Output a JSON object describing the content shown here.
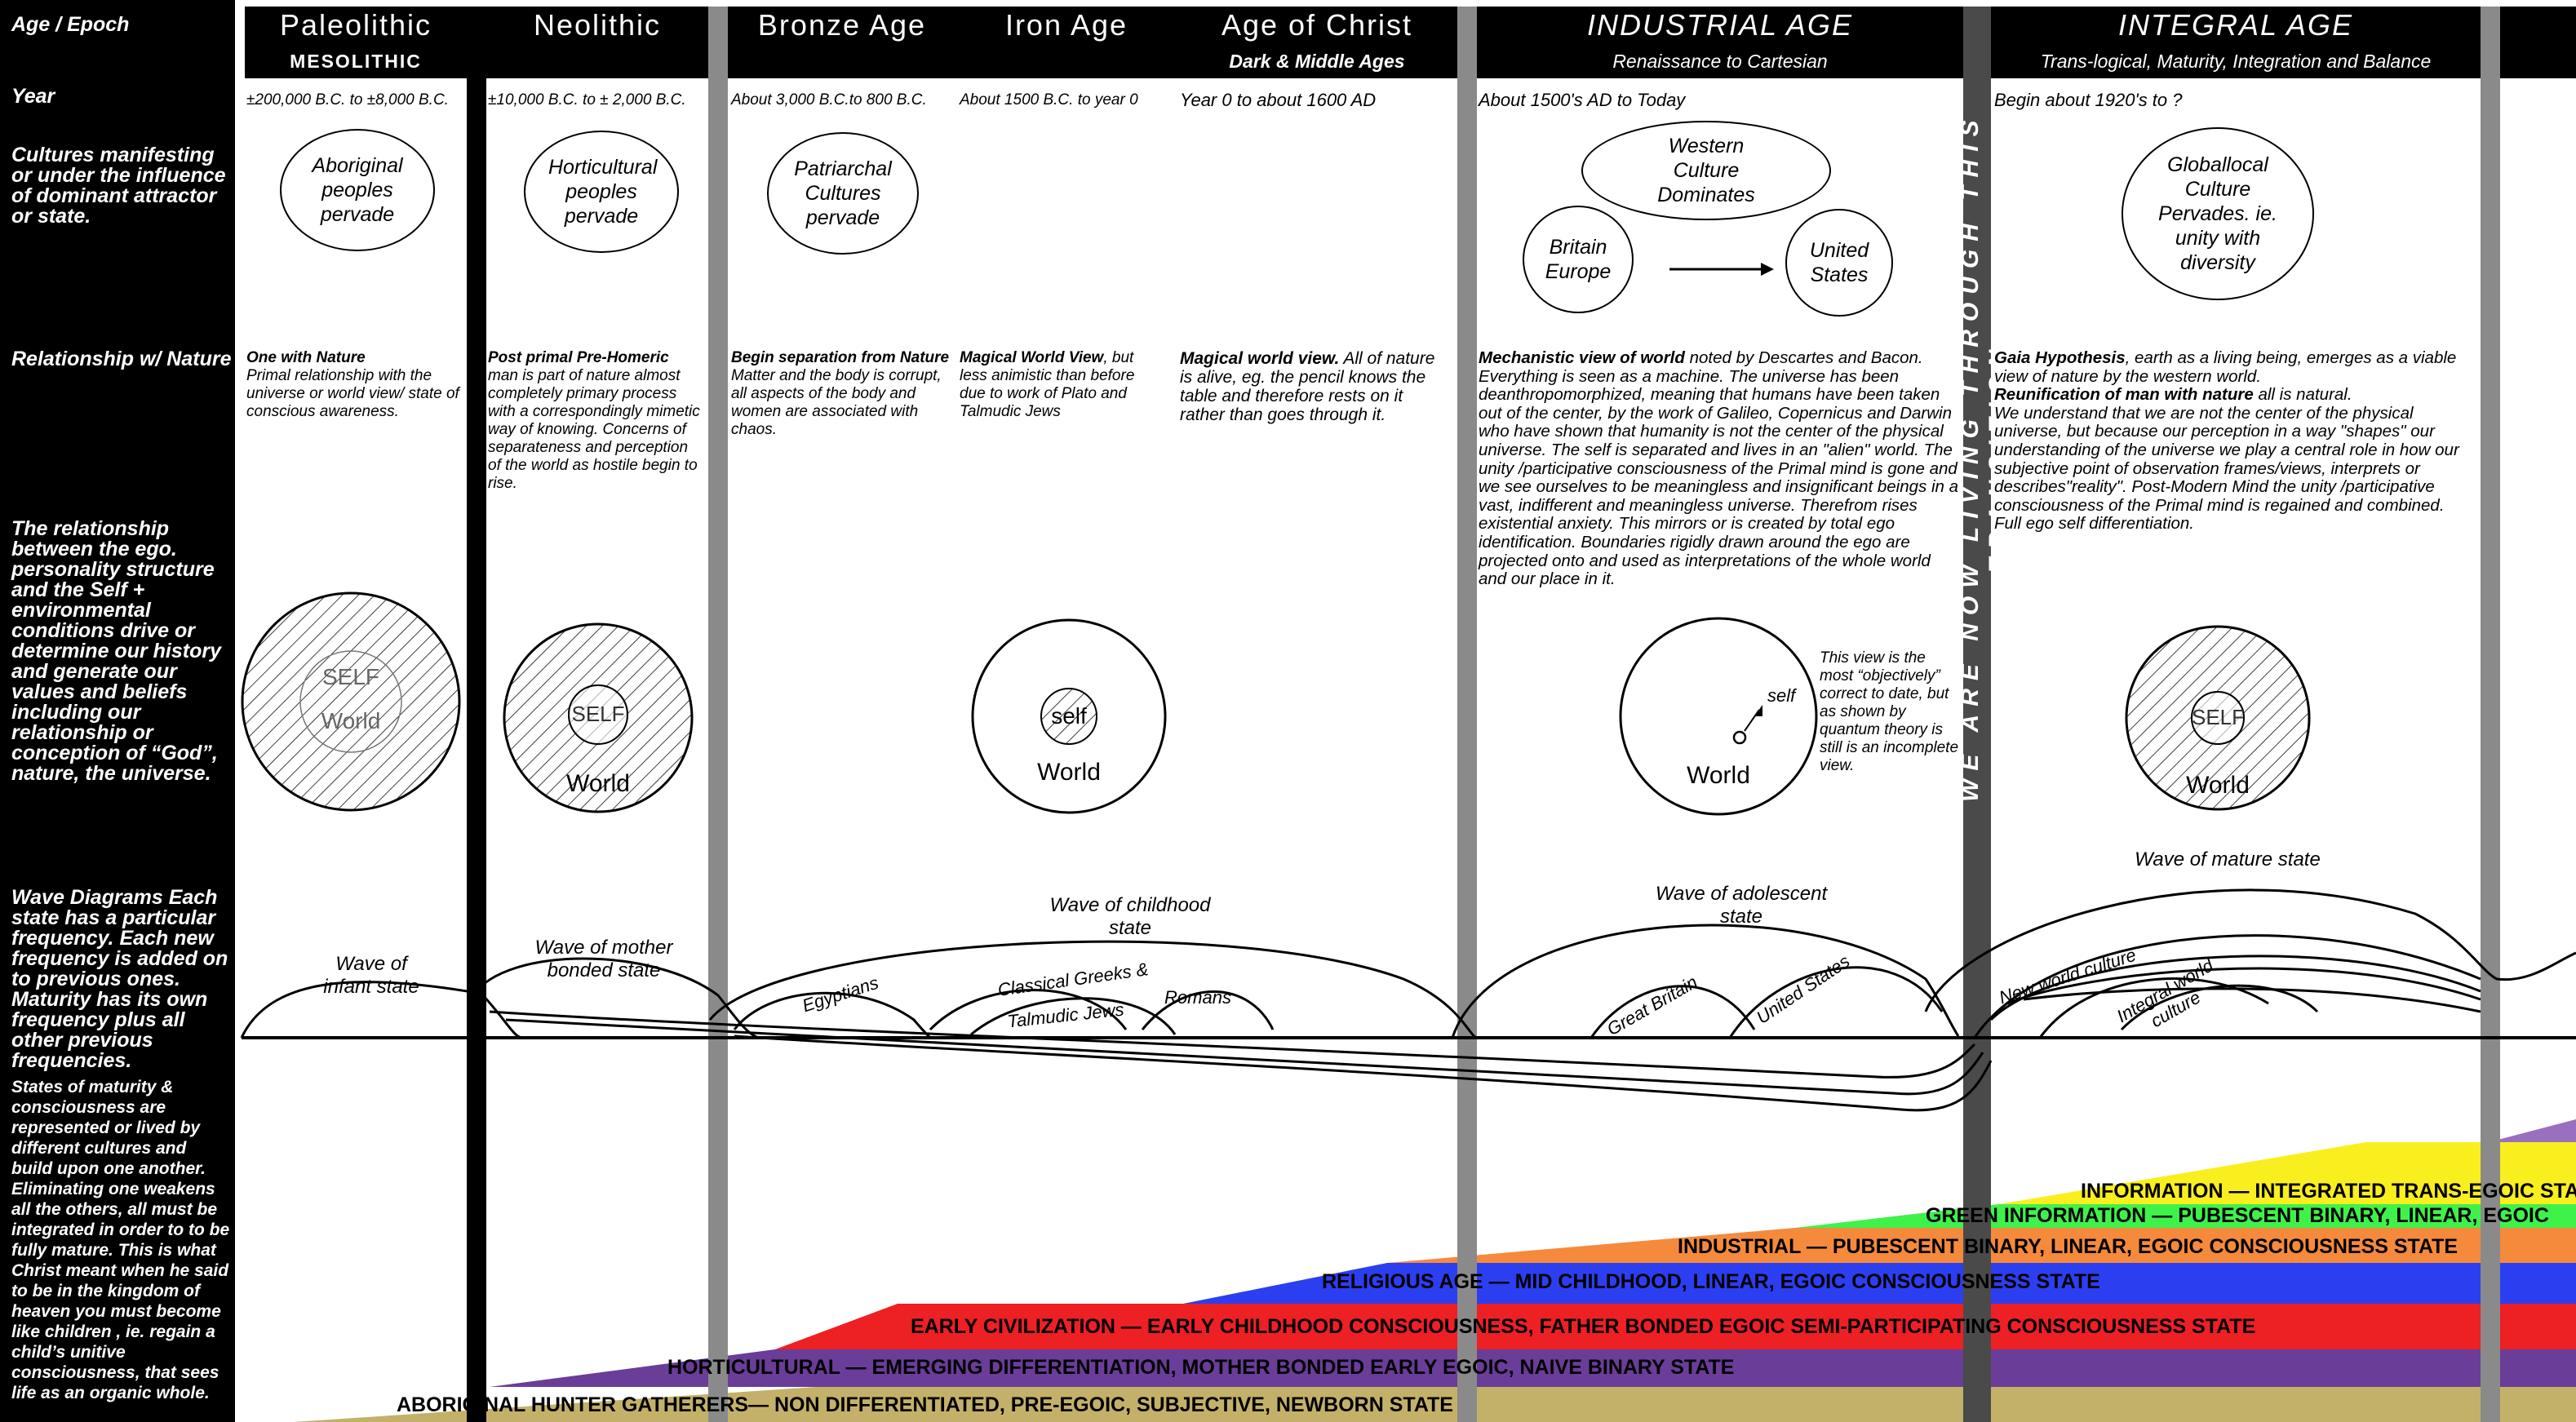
{
  "sidebar": {
    "age_epoch": "Age / Epoch",
    "year": "Year",
    "cultures": "Cultures manifesting or under the influence of dominant attractor or state.",
    "relationship": "Relationship w/ Nature",
    "ego_structure": "The relationship between the ego. personality structure and the Self + environmental conditions drive or determine our history and generate our values and beliefs including our relationship or conception of “God”, nature, the universe.",
    "wave_diagrams": "Wave Diagrams Each state has a particular frequency. Each new frequency is added on to previous ones. Maturity has its own frequency plus all other previous frequencies.",
    "states": "States of maturity & consciousness are represented or lived by different cultures and build upon one another. Eliminating one weakens all the others, all must be integrated in order to to be fully mature. This is what Christ meant when he said to be in the kingdom of heaven you must become like children , ie. regain a child’s unitive consciousness, that sees life as an organic whole."
  },
  "eras": {
    "paleolithic": {
      "title": "Paleolithic",
      "sub": "MESOLITHIC"
    },
    "neolithic": {
      "title": "Neolithic"
    },
    "bronze": {
      "title": "Bronze Age"
    },
    "iron": {
      "title": "Iron Age"
    },
    "christ": {
      "title": "Age of Christ",
      "sub": "Dark & Middle Ages"
    },
    "industrial": {
      "title": "INDUSTRIAL AGE",
      "sub": "Renaissance to Cartesian"
    },
    "integral": {
      "title": "INTEGRAL  AGE",
      "sub": "Trans-logical, Maturity, Integration and Balance"
    }
  },
  "years": {
    "paleolithic": "±200,000 B.C. to ±8,000 B.C.",
    "neolithic": "±10,000 B.C. to ± 2,000 B.C.",
    "bronze": "About 3,000 B.C.to 800 B.C.",
    "iron": "About 1500 B.C. to year 0",
    "christ": "Year 0 to about 1600 AD",
    "industrial": "About 1500's AD to Today",
    "integral": "Begin about 1920's to  ?"
  },
  "cultures": {
    "paleolithic": "Aboriginal peoples pervade",
    "neolithic": "Horticultural peoples pervade",
    "bronze": "Patriarchal Cultures pervade",
    "western": "Western Culture Dominates",
    "britain": "Britain Europe",
    "us": "United States",
    "integral": "Globallocal Culture Pervades. ie. unity with diversity"
  },
  "relationship": {
    "paleolithic_head": "One with Nature",
    "paleolithic_body": "Primal relationship with the universe or world view/ state of conscious awareness.",
    "neolithic_head": "Post primal Pre-Homeric",
    "neolithic_body": "man is part of nature almost completely primary process with a correspondingly mimetic way of knowing. Concerns of separateness and perception of the world as hostile begin to rise.",
    "bronze_head": "Begin separation from Nature",
    "bronze_body": "Matter and the body is corrupt, all aspects of the body and women are associated with chaos.",
    "iron_head": "Magical World View",
    "iron_body": ", but less animistic than before due to work of Plato and Talmudic Jews",
    "christ_head": "Magical world view.",
    "christ_body": " All of nature is alive, eg. the pencil knows the table and therefore rests on it rather than goes through it.",
    "industrial_head": "Mechanistic view of world",
    "industrial_body": " noted by Descartes and Bacon.  Everything is seen as a machine.  The universe has been deanthropomorphized, meaning that humans have been taken out of the center, by the work of Galileo, Copernicus and Darwin who have shown that humanity is not the center of the physical universe.  The self is separated and lives in an \"alien\" world.  The unity /participative consciousness of the Primal mind is  gone and we see ourselves to be meaningless and insignificant beings in a vast, indifferent and meaningless universe.  Therefrom rises existential anxiety.  This mirrors or is created by total ego identification.  Boundaries rigidly drawn around the ego are projected onto and used as interpretations of the whole world and our place in it.",
    "integral_head1": "Gaia Hypothesis",
    "integral_body1": ", earth as a living being, emerges as a viable view of nature by the western world.",
    "integral_head2": "Reunification of man with nature",
    "integral_body2": " all is natural.",
    "integral_body3": "We understand that we are not the center of the physical universe, but because our perception in a way \"shapes\" our understanding of the universe we play a central role in how our subjective point of observation frames/views, interprets or describes\"reality\".  Post-Modern Mind the unity /participative consciousness of the Primal mind is regained and combined.  Full ego self differentiation."
  },
  "self_world": {
    "self": "SELF",
    "self_lower": "self",
    "world": "World",
    "industrial_note": "This view is the most “objectively” correct to date, but as shown by quantum theory is still is an incomplete view."
  },
  "waves": {
    "infant": "Wave of infant state",
    "mother": "Wave of mother bonded state",
    "childhood": "Wave of childhood state",
    "egyptians": "Egyptians",
    "greeks": "Classical Greeks &",
    "jews": "Talmudic Jews",
    "romans": "Romans",
    "adolescent": "Wave of adolescent state",
    "britain": "Great Britain",
    "us": "United States",
    "mature": "Wave of mature state",
    "new_world": "New world culture",
    "integral_world": "Integral world culture"
  },
  "transition": "WE ARE NOW LIVING THROUGH THIS TRANSITION",
  "bands": [
    {
      "label": "ABORIGINAL HUNTER GATHERERS— NON DIFFERENTIATED,    PRE-EGOIC,    SUBJECTIVE,    NEWBORN STATE",
      "color": "#c4b169"
    },
    {
      "label": "HORTICULTURAL — EMERGING DIFFERENTIATION,    MOTHER BONDED EARLY EGOIC,    NAIVE BINARY STATE",
      "color": "#6a3d99"
    },
    {
      "label": "EARLY CIVILIZATION  —  EARLY CHILDHOOD  CONSCIOUSNESS,    FATHER BONDED     EGOIC  SEMI-PARTICIPATING CONSCIOUSNESS  STATE",
      "color": "#ed2024"
    },
    {
      "label": "RELIGIOUS AGE — MID CHILDHOOD, LINEAR, EGOIC  CONSCIOUSNESS  STATE",
      "color": "#2b3ff0"
    },
    {
      "label": "INDUSTRIAL — PUBESCENT BINARY, LINEAR, EGOIC  CONSCIOUSNESS  STATE",
      "color": "#f58a3c"
    },
    {
      "label": "GREEN INFORMATION — PUBESCENT BINARY, LINEAR, EGOIC",
      "color": "#3ff24a"
    },
    {
      "label": "INFORMATION — INTEGRATED TRANS-EGOIC STATE",
      "color": "#f9ef1f"
    },
    {
      "label": "",
      "color": "#9a6fbf"
    }
  ]
}
